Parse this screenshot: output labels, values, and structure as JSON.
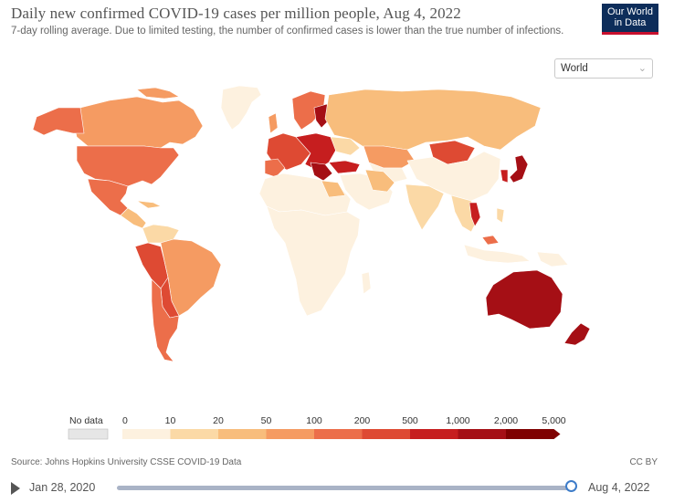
{
  "header": {
    "title": "Daily new confirmed COVID-19 cases per million people, Aug 4, 2022",
    "subtitle": "7-day rolling average. Due to limited testing, the number of confirmed cases is lower than the true number of infections.",
    "logo_line1": "Our World",
    "logo_line2": "in Data"
  },
  "region_select": {
    "value": "World",
    "icon": "chevron-down-icon"
  },
  "legend": {
    "no_data_label": "No data",
    "no_data_color": "#e6e6e6",
    "ticks": [
      "0",
      "10",
      "20",
      "50",
      "100",
      "200",
      "500",
      "1,000",
      "2,000",
      "5,000"
    ],
    "bins": [
      {
        "color": "#fdf1df"
      },
      {
        "color": "#fbd9a6"
      },
      {
        "color": "#f8bd7c"
      },
      {
        "color": "#f59b62"
      },
      {
        "color": "#ec6e4a"
      },
      {
        "color": "#de4a33"
      },
      {
        "color": "#c61e1f"
      },
      {
        "color": "#a50f15"
      },
      {
        "color": "#7f0000"
      }
    ]
  },
  "footer": {
    "source": "Source: Johns Hopkins University CSSE COVID-19 Data",
    "license": "CC BY"
  },
  "timeline": {
    "start_date": "Jan 28, 2020",
    "end_date": "Aug 4, 2022",
    "position": 1.0
  }
}
